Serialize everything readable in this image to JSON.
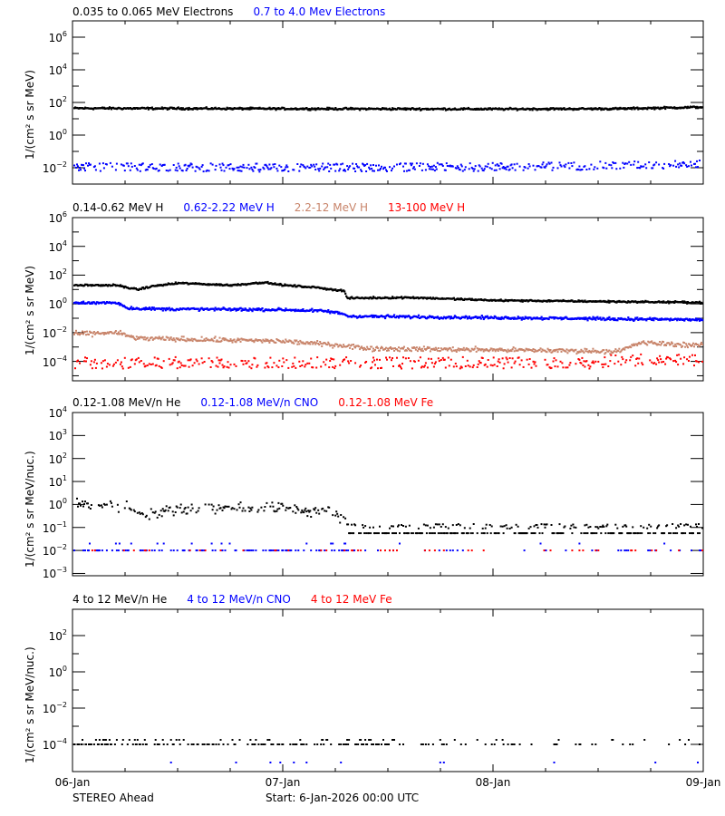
{
  "footer": {
    "spacecraft": "STEREO Ahead",
    "start_label": "Start:  6-Jan-2026 00:00 UTC"
  },
  "x_axis": {
    "ticks": [
      "06-Jan",
      "07-Jan",
      "08-Jan",
      "09-Jan"
    ]
  },
  "colors": {
    "black": "#000000",
    "blue": "#0000FF",
    "brown": "#C8846A",
    "red": "#FF0000"
  },
  "panels": [
    {
      "ylabel": "1/(cm² s sr MeV)",
      "legend": [
        {
          "text": "0.035 to 0.065 MeV Electrons",
          "color": "#000000"
        },
        {
          "text": "0.7 to 4.0 Mev Electrons",
          "color": "#0000FF"
        }
      ],
      "yticks": [
        "6",
        "4",
        "2",
        "0",
        "-2"
      ]
    },
    {
      "ylabel": "1/(cm² s sr MeV)",
      "legend": [
        {
          "text": "0.14-0.62 MeV H",
          "color": "#000000"
        },
        {
          "text": "0.62-2.22 MeV H",
          "color": "#0000FF"
        },
        {
          "text": "2.2-12 MeV H",
          "color": "#C8846A"
        },
        {
          "text": "13-100 MeV H",
          "color": "#FF0000"
        }
      ],
      "yticks": [
        "6",
        "4",
        "2",
        "0",
        "-2",
        "-4"
      ]
    },
    {
      "ylabel": "1/(cm² s sr MeV/nuc.)",
      "legend": [
        {
          "text": "0.12-1.08 MeV/n He",
          "color": "#000000"
        },
        {
          "text": "0.12-1.08 MeV/n CNO",
          "color": "#0000FF"
        },
        {
          "text": "0.12-1.08 MeV Fe",
          "color": "#FF0000"
        }
      ],
      "yticks": [
        "4",
        "3",
        "2",
        "1",
        "0",
        "-1",
        "-2",
        "-3"
      ]
    },
    {
      "ylabel": "1/(cm² s sr MeV/nuc.)",
      "legend": [
        {
          "text": "4 to 12 MeV/n He",
          "color": "#000000"
        },
        {
          "text": "4 to 12 MeV/n CNO",
          "color": "#0000FF"
        },
        {
          "text": "4 to 12 MeV Fe",
          "color": "#FF0000"
        }
      ],
      "yticks": [
        "2",
        "0",
        "-2",
        "-4"
      ]
    }
  ],
  "chart_data": [
    {
      "type": "scatter",
      "title": "0.035 to 0.065 MeV Electrons / 0.7 to 4.0 Mev Electrons",
      "xlabel": "",
      "ylabel": "1/(cm^2 s sr MeV)",
      "x_range": [
        "06-Jan",
        "09-Jan"
      ],
      "ylim_log10": [
        -3,
        7
      ],
      "yscale": "log",
      "series": [
        {
          "name": "0.035 to 0.065 MeV Electrons",
          "color": "#000000",
          "x_days": [
            0,
            1,
            2,
            2.6,
            3
          ],
          "log10_values": [
            1.65,
            1.62,
            1.6,
            1.62,
            1.72
          ],
          "noise": 0.03
        },
        {
          "name": "0.7 to 4.0 Mev Electrons",
          "color": "#0000FF",
          "x_days": [
            0,
            1,
            2,
            3
          ],
          "log10_values": [
            -1.95,
            -2.0,
            -1.95,
            -1.8
          ],
          "noise": 0.25
        }
      ]
    },
    {
      "type": "scatter",
      "title": "Protons",
      "xlabel": "",
      "ylabel": "1/(cm^2 s sr MeV)",
      "x_range": [
        "06-Jan",
        "09-Jan"
      ],
      "ylim_log10": [
        -5,
        6
      ],
      "yscale": "log",
      "series": [
        {
          "name": "0.14-0.62 MeV H",
          "color": "#000000",
          "x_days": [
            0,
            0.2,
            0.3,
            0.38,
            0.5,
            0.75,
            0.9,
            1.0,
            1.15,
            1.29,
            1.3,
            1.6,
            2.0,
            3.0
          ],
          "log10_values": [
            1.3,
            1.3,
            1.0,
            1.25,
            1.45,
            1.3,
            1.5,
            1.3,
            1.15,
            0.9,
            0.4,
            0.45,
            0.25,
            0.1
          ],
          "noise": 0.03
        },
        {
          "name": "0.62-2.22 MeV H",
          "color": "#0000FF",
          "x_days": [
            0,
            0.2,
            0.26,
            0.4,
            1.0,
            1.2,
            1.29,
            1.3,
            3.0
          ],
          "log10_values": [
            0.05,
            0.1,
            -0.3,
            -0.35,
            -0.4,
            -0.5,
            -0.7,
            -0.85,
            -1.1
          ],
          "noise": 0.05
        },
        {
          "name": "2.2-12 MeV H",
          "color": "#C8846A",
          "x_days": [
            0,
            0.2,
            0.3,
            1.0,
            1.29,
            1.4,
            2.0,
            2.6,
            2.7,
            3.0
          ],
          "log10_values": [
            -2.1,
            -2.0,
            -2.4,
            -2.6,
            -2.9,
            -3.1,
            -3.2,
            -3.3,
            -2.7,
            -2.9
          ],
          "noise": 0.08
        },
        {
          "name": "13-100 MeV H",
          "color": "#FF0000",
          "x_days": [
            0,
            1.5,
            2.5,
            3.0
          ],
          "log10_values": [
            -4.2,
            -4.3,
            -3.9,
            -4.1
          ],
          "noise": 0.3
        }
      ]
    },
    {
      "type": "scatter",
      "title": "Suprathermal ions",
      "xlabel": "",
      "ylabel": "1/(cm^2 s sr MeV/nuc.)",
      "x_range": [
        "06-Jan",
        "09-Jan"
      ],
      "ylim_log10": [
        -3.3,
        4
      ],
      "yscale": "log",
      "series": [
        {
          "name": "0.12-1.08 MeV/n He",
          "color": "#000000",
          "x_days": [
            0,
            0.25,
            0.35,
            0.5,
            1.0,
            1.2,
            1.3,
            1.31,
            3.0
          ],
          "log10_values": [
            0.05,
            -0.1,
            -0.45,
            -0.15,
            -0.15,
            -0.3,
            -0.6,
            -1.1,
            -1.2
          ],
          "noise": 0.12
        },
        {
          "name": "0.12-1.08 MeV/n CNO",
          "color": "#0000FF",
          "x_days": [
            0,
            3
          ],
          "log10_values": [
            -2.0,
            -2.0
          ],
          "noise": 0.0
        },
        {
          "name": "0.12-1.08 MeV Fe",
          "color": "#FF0000",
          "x_days": [
            0,
            3
          ],
          "log10_values": [
            -2.0,
            -2.0
          ],
          "noise": 0.0
        }
      ]
    },
    {
      "type": "scatter",
      "title": "High energy ions",
      "xlabel": "",
      "ylabel": "1/(cm^2 s sr MeV/nuc.)",
      "x_range": [
        "06-Jan",
        "09-Jan"
      ],
      "ylim_log10": [
        -5,
        3
      ],
      "yscale": "log",
      "series": [
        {
          "name": "4 to 12 MeV/n He",
          "color": "#000000",
          "x_days": [
            0,
            3
          ],
          "log10_values": [
            -4.0,
            -4.0
          ],
          "noise": 0.0
        },
        {
          "name": "4 to 12 MeV/n CNO",
          "color": "#0000FF",
          "x_days": [
            0,
            3
          ],
          "log10_values": [
            -5.0,
            -5.0
          ],
          "noise": 0.0
        },
        {
          "name": "4 to 12 MeV Fe",
          "color": "#FF0000",
          "x_days": [],
          "log10_values": [],
          "noise": 0.0
        }
      ]
    }
  ]
}
